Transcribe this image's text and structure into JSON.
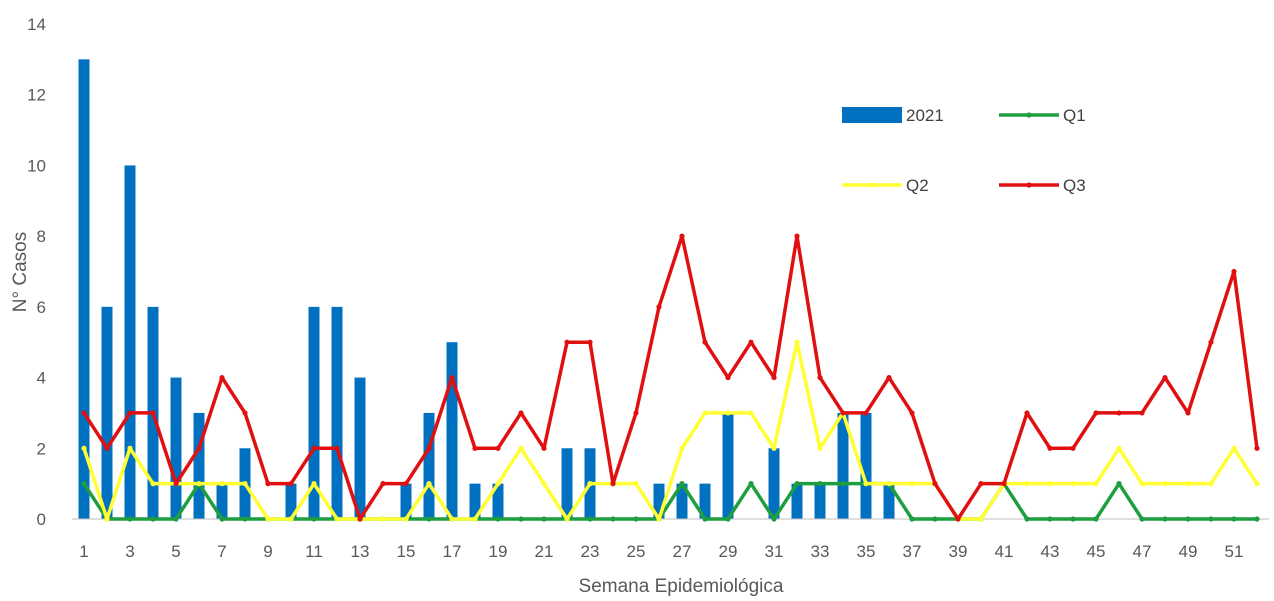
{
  "chart_data": {
    "type": "bar",
    "xlabel": "Semana Epidemiológica",
    "ylabel": "N° Casos",
    "ylim": [
      0,
      14
    ],
    "yticks": [
      0,
      2,
      4,
      6,
      8,
      10,
      12,
      14
    ],
    "grid": false,
    "legend_position": "top-right",
    "x": [
      1,
      2,
      3,
      4,
      5,
      6,
      7,
      8,
      9,
      10,
      11,
      12,
      13,
      14,
      15,
      16,
      17,
      18,
      19,
      20,
      21,
      22,
      23,
      24,
      25,
      26,
      27,
      28,
      29,
      30,
      31,
      32,
      33,
      34,
      35,
      36,
      37,
      38,
      39,
      40,
      41,
      42,
      43,
      44,
      45,
      46,
      47,
      48,
      49,
      50,
      51,
      52
    ],
    "x_tick_labels": [
      "1",
      "3",
      "5",
      "7",
      "9",
      "11",
      "13",
      "15",
      "17",
      "19",
      "21",
      "23",
      "25",
      "27",
      "29",
      "31",
      "33",
      "35",
      "37",
      "39",
      "41",
      "43",
      "45",
      "47",
      "49",
      "51"
    ],
    "bars": {
      "name": "2021",
      "color": "#0070C0",
      "values": [
        13,
        6,
        10,
        6,
        4,
        3,
        1,
        2,
        0,
        1,
        6,
        6,
        4,
        0,
        1,
        3,
        5,
        1,
        1,
        0,
        0,
        2,
        2,
        0,
        0,
        1,
        1,
        1,
        3,
        0,
        2,
        1,
        1,
        3,
        3,
        1,
        0,
        0,
        0,
        0,
        0,
        0,
        0,
        0,
        0,
        0,
        0,
        0,
        0,
        0,
        0,
        0
      ]
    },
    "series": [
      {
        "name": "Q1",
        "color": "#1E9E3E",
        "values": [
          1,
          0,
          0,
          0,
          0,
          1,
          0,
          0,
          0,
          0,
          0,
          0,
          0,
          0,
          0,
          0,
          0,
          0,
          0,
          0,
          0,
          0,
          0,
          0,
          0,
          0,
          1,
          0,
          0,
          1,
          0,
          1,
          1,
          1,
          1,
          1,
          0,
          0,
          0,
          0,
          1,
          0,
          0,
          0,
          0,
          1,
          0,
          0,
          0,
          0,
          0,
          0
        ]
      },
      {
        "name": "Q2",
        "color": "#FFFF33",
        "values": [
          2,
          0,
          2,
          1,
          1,
          1,
          1,
          1,
          0,
          0,
          1,
          0,
          0,
          0,
          0,
          1,
          0,
          0,
          1,
          2,
          1,
          0,
          1,
          1,
          1,
          0,
          2,
          3,
          3,
          3,
          2,
          5,
          2,
          3,
          1,
          1,
          1,
          1,
          0,
          0,
          1,
          1,
          1,
          1,
          1,
          2,
          1,
          1,
          1,
          1,
          2,
          1
        ]
      },
      {
        "name": "Q3",
        "color": "#E01010",
        "values": [
          3,
          2,
          3,
          3,
          1,
          2,
          4,
          3,
          1,
          1,
          2,
          2,
          0,
          1,
          1,
          2,
          4,
          2,
          2,
          3,
          2,
          5,
          5,
          1,
          3,
          6,
          8,
          5,
          4,
          5,
          4,
          8,
          4,
          3,
          3,
          4,
          3,
          1,
          0,
          1,
          1,
          3,
          2,
          2,
          3,
          3,
          3,
          4,
          3,
          5,
          7,
          2
        ]
      }
    ]
  }
}
